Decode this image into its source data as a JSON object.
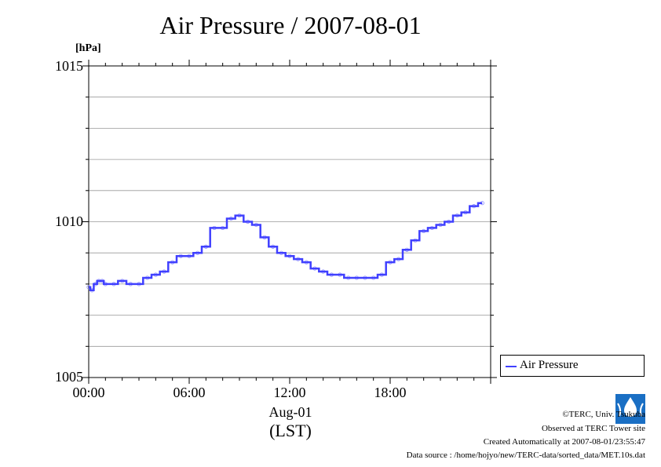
{
  "title": "Air Pressure / 2007-08-01",
  "unit_label": "[hPa]",
  "y_ticks": [
    "1015",
    "1010",
    "1005"
  ],
  "x_ticks": [
    "00:00",
    "06:00",
    "12:00",
    "18:00"
  ],
  "x_date": "Aug-01",
  "x_unit": "(LST)",
  "legend_label": "Air Pressure",
  "footer": {
    "copyright": "©TERC, Univ. Tsukuba",
    "observed": "Observed at TERC Tower site",
    "created": "Created Automatically at 2007-08-01/23:55:47",
    "source": "Data source : /home/hojyo/new/TERC-data/sorted_data/MET.10s.dat"
  },
  "logo_text": "TERC",
  "colors": {
    "series": "#4040ff",
    "marker": "#9090ff",
    "grid": "#999999",
    "logo": "#1a6fc4"
  },
  "chart_data": {
    "type": "line",
    "title": "Air Pressure / 2007-08-01",
    "xlabel": "Aug-01 (LST)",
    "ylabel": "[hPa]",
    "ylim": [
      1005,
      1015
    ],
    "xlim_hours": [
      0,
      23.67
    ],
    "grid": "horizontal",
    "legend": "right-bottom",
    "series": [
      {
        "name": "Air Pressure",
        "x_hours": [
          0,
          0.2,
          0.4,
          0.6,
          0.8,
          1.0,
          1.5,
          2.0,
          2.5,
          3.0,
          3.5,
          4.0,
          4.5,
          5.0,
          5.5,
          6.0,
          6.5,
          7.0,
          7.5,
          8.0,
          8.5,
          9.0,
          9.5,
          10.0,
          10.5,
          11.0,
          11.5,
          12.0,
          12.5,
          13.0,
          13.5,
          14.0,
          14.5,
          15.0,
          15.5,
          16.0,
          16.5,
          17.0,
          17.5,
          18.0,
          18.5,
          19.0,
          19.5,
          20.0,
          20.5,
          21.0,
          21.5,
          22.0,
          22.5,
          23.0,
          23.5
        ],
        "values": [
          1007.9,
          1007.8,
          1008.0,
          1008.1,
          1008.1,
          1008.0,
          1008.0,
          1008.1,
          1008.0,
          1008.0,
          1008.2,
          1008.3,
          1008.4,
          1008.7,
          1008.9,
          1008.9,
          1009.0,
          1009.2,
          1009.8,
          1009.8,
          1010.1,
          1010.2,
          1010.0,
          1009.9,
          1009.5,
          1009.2,
          1009.0,
          1008.9,
          1008.8,
          1008.7,
          1008.5,
          1008.4,
          1008.3,
          1008.3,
          1008.2,
          1008.2,
          1008.2,
          1008.2,
          1008.3,
          1008.7,
          1008.8,
          1009.1,
          1009.4,
          1009.7,
          1009.8,
          1009.9,
          1010.0,
          1010.2,
          1010.3,
          1010.5,
          1010.6
        ]
      }
    ]
  }
}
